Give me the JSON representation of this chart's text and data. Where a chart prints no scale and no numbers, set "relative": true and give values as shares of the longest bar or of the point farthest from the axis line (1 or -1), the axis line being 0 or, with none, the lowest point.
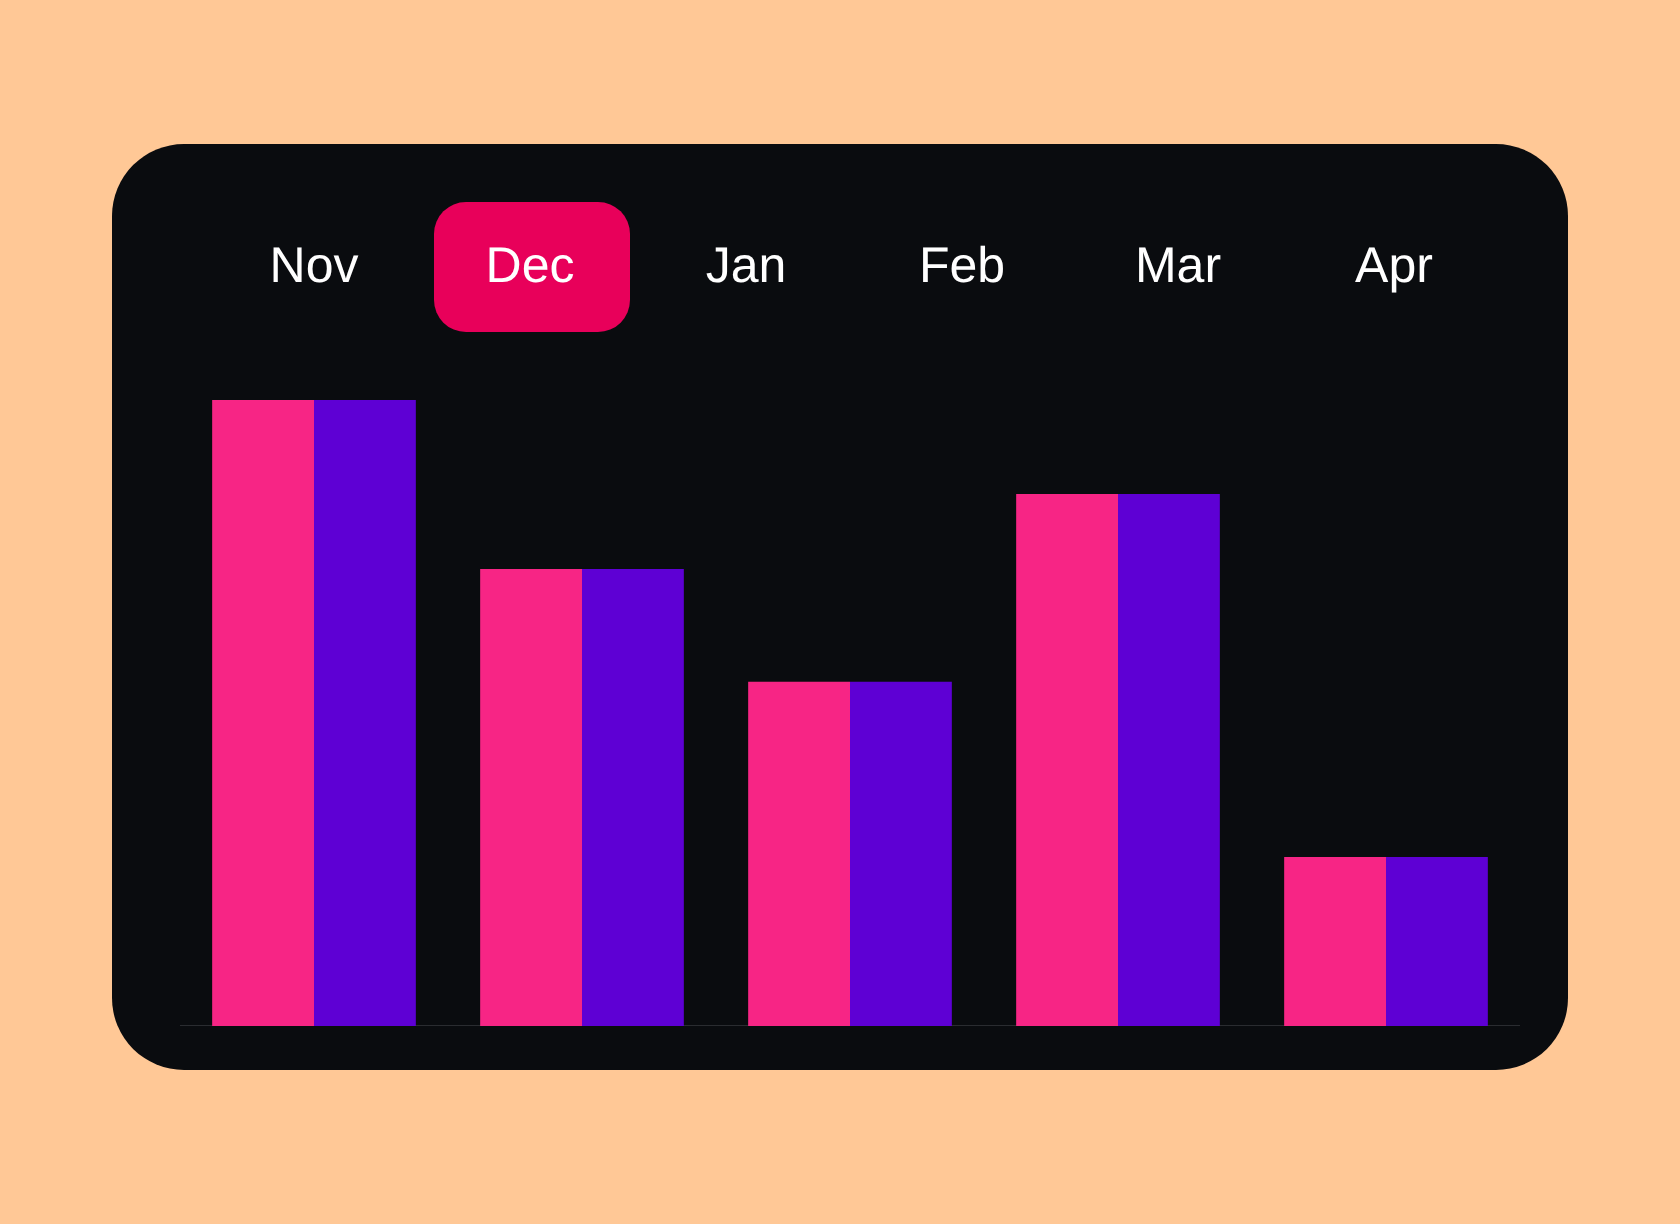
{
  "chart_data": {
    "type": "bar",
    "relative": true,
    "annotations": [
      "Nov",
      "Dec",
      "Jan",
      "Feb",
      "Mar",
      "Apr"
    ],
    "categories": [
      null,
      null,
      null,
      null,
      null
    ],
    "series": [
      {
        "color": "#f72585",
        "values": [
          1,
          0.73,
          0.55,
          0.85,
          0.27
        ]
      },
      {
        "color": "#5e00d4",
        "values": [
          1,
          0.73,
          0.55,
          0.85,
          0.27
        ]
      }
    ]
  }
}
